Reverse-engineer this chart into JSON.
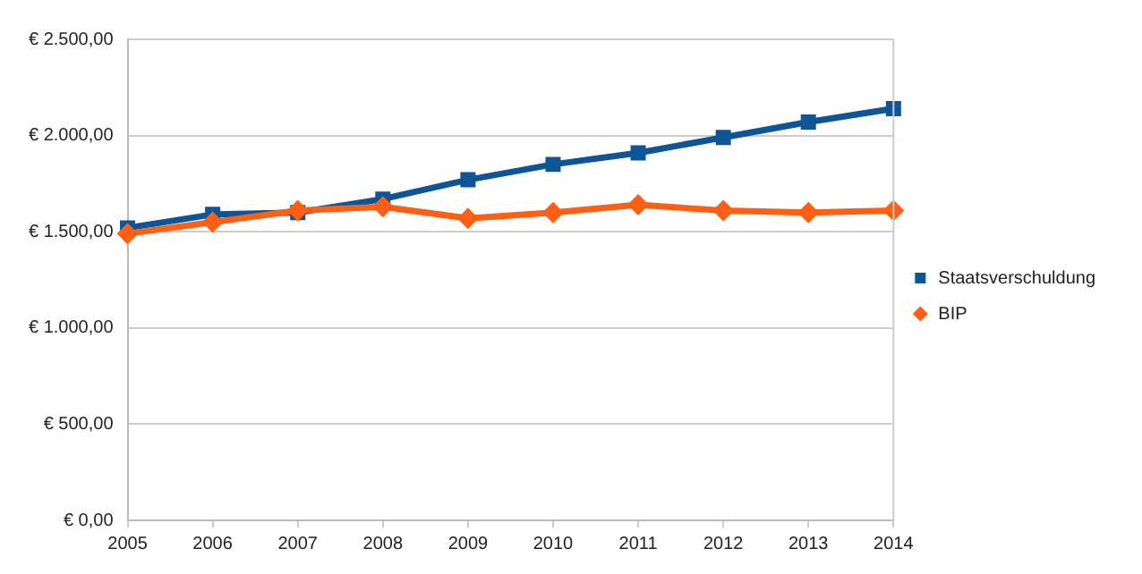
{
  "chart_data": {
    "type": "line",
    "categories": [
      "2005",
      "2006",
      "2007",
      "2008",
      "2009",
      "2010",
      "2011",
      "2012",
      "2013",
      "2014"
    ],
    "series": [
      {
        "name": "Staatsverschuldung",
        "color": "#0d5596",
        "marker": "square",
        "values": [
          1520,
          1590,
          1600,
          1670,
          1770,
          1850,
          1910,
          1990,
          2070,
          2140
        ]
      },
      {
        "name": "BIP",
        "color": "#ff5f12",
        "marker": "diamond",
        "values": [
          1490,
          1550,
          1610,
          1630,
          1570,
          1600,
          1640,
          1610,
          1600,
          1610
        ]
      }
    ],
    "ylim": [
      0,
      2500
    ],
    "yticks": [
      {
        "value": 0,
        "label": "€ 0,00"
      },
      {
        "value": 500,
        "label": "€ 500,00"
      },
      {
        "value": 1000,
        "label": "€ 1.000,00"
      },
      {
        "value": 1500,
        "label": "€ 1.500,00"
      },
      {
        "value": 2000,
        "label": "€ 2.000,00"
      },
      {
        "value": 2500,
        "label": "€ 2.500,00"
      }
    ],
    "grid": "y",
    "legend": "right",
    "line_style": "solid"
  }
}
